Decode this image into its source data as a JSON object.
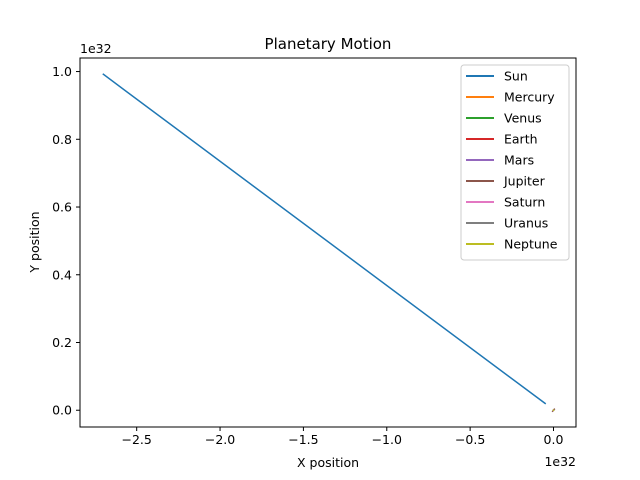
{
  "chart_data": {
    "type": "line",
    "title": "Planetary Motion",
    "xlabel": "X position",
    "ylabel": "Y position",
    "x_offset_text": "1e32",
    "y_offset_text": "1e32",
    "xlim": [
      -2.84,
      0.135
    ],
    "ylim": [
      -0.0495,
      1.04
    ],
    "x_ticks": [
      -2.5,
      -2.0,
      -1.5,
      -1.0,
      -0.5,
      0.0
    ],
    "x_tick_labels": [
      "−2.5",
      "−2.0",
      "−1.5",
      "−1.0",
      "−0.5",
      "0.0"
    ],
    "y_ticks": [
      0.0,
      0.2,
      0.4,
      0.6,
      0.8,
      1.0
    ],
    "y_tick_labels": [
      "0.0",
      "0.2",
      "0.4",
      "0.6",
      "0.8",
      "1.0"
    ],
    "grid": false,
    "legend_position": "top-right",
    "series": [
      {
        "name": "Sun",
        "color": "#1f77b4",
        "x": [
          -2.7,
          -0.05
        ],
        "y": [
          0.992,
          0.02
        ]
      },
      {
        "name": "Mercury",
        "color": "#ff7f0e",
        "x": [
          0.0,
          0.0
        ],
        "y": [
          0.0,
          0.0
        ]
      },
      {
        "name": "Venus",
        "color": "#2ca02c",
        "x": [
          0.0,
          0.0
        ],
        "y": [
          0.0,
          0.0
        ]
      },
      {
        "name": "Earth",
        "color": "#d62728",
        "x": [
          0.0,
          0.0
        ],
        "y": [
          0.0,
          0.0
        ]
      },
      {
        "name": "Mars",
        "color": "#9467bd",
        "x": [
          0.0,
          0.0
        ],
        "y": [
          0.0,
          0.0
        ]
      },
      {
        "name": "Jupiter",
        "color": "#8c564b",
        "x": [
          -0.005,
          0.005
        ],
        "y": [
          -0.003,
          0.003
        ]
      },
      {
        "name": "Saturn",
        "color": "#e377c2",
        "x": [
          0.0,
          0.0
        ],
        "y": [
          0.0,
          0.0
        ]
      },
      {
        "name": "Uranus",
        "color": "#7f7f7f",
        "x": [
          0.0,
          0.0
        ],
        "y": [
          0.0,
          0.0
        ]
      },
      {
        "name": "Neptune",
        "color": "#bcbd22",
        "x": [
          0.0,
          0.0
        ],
        "y": [
          0.0,
          0.0
        ]
      }
    ]
  }
}
